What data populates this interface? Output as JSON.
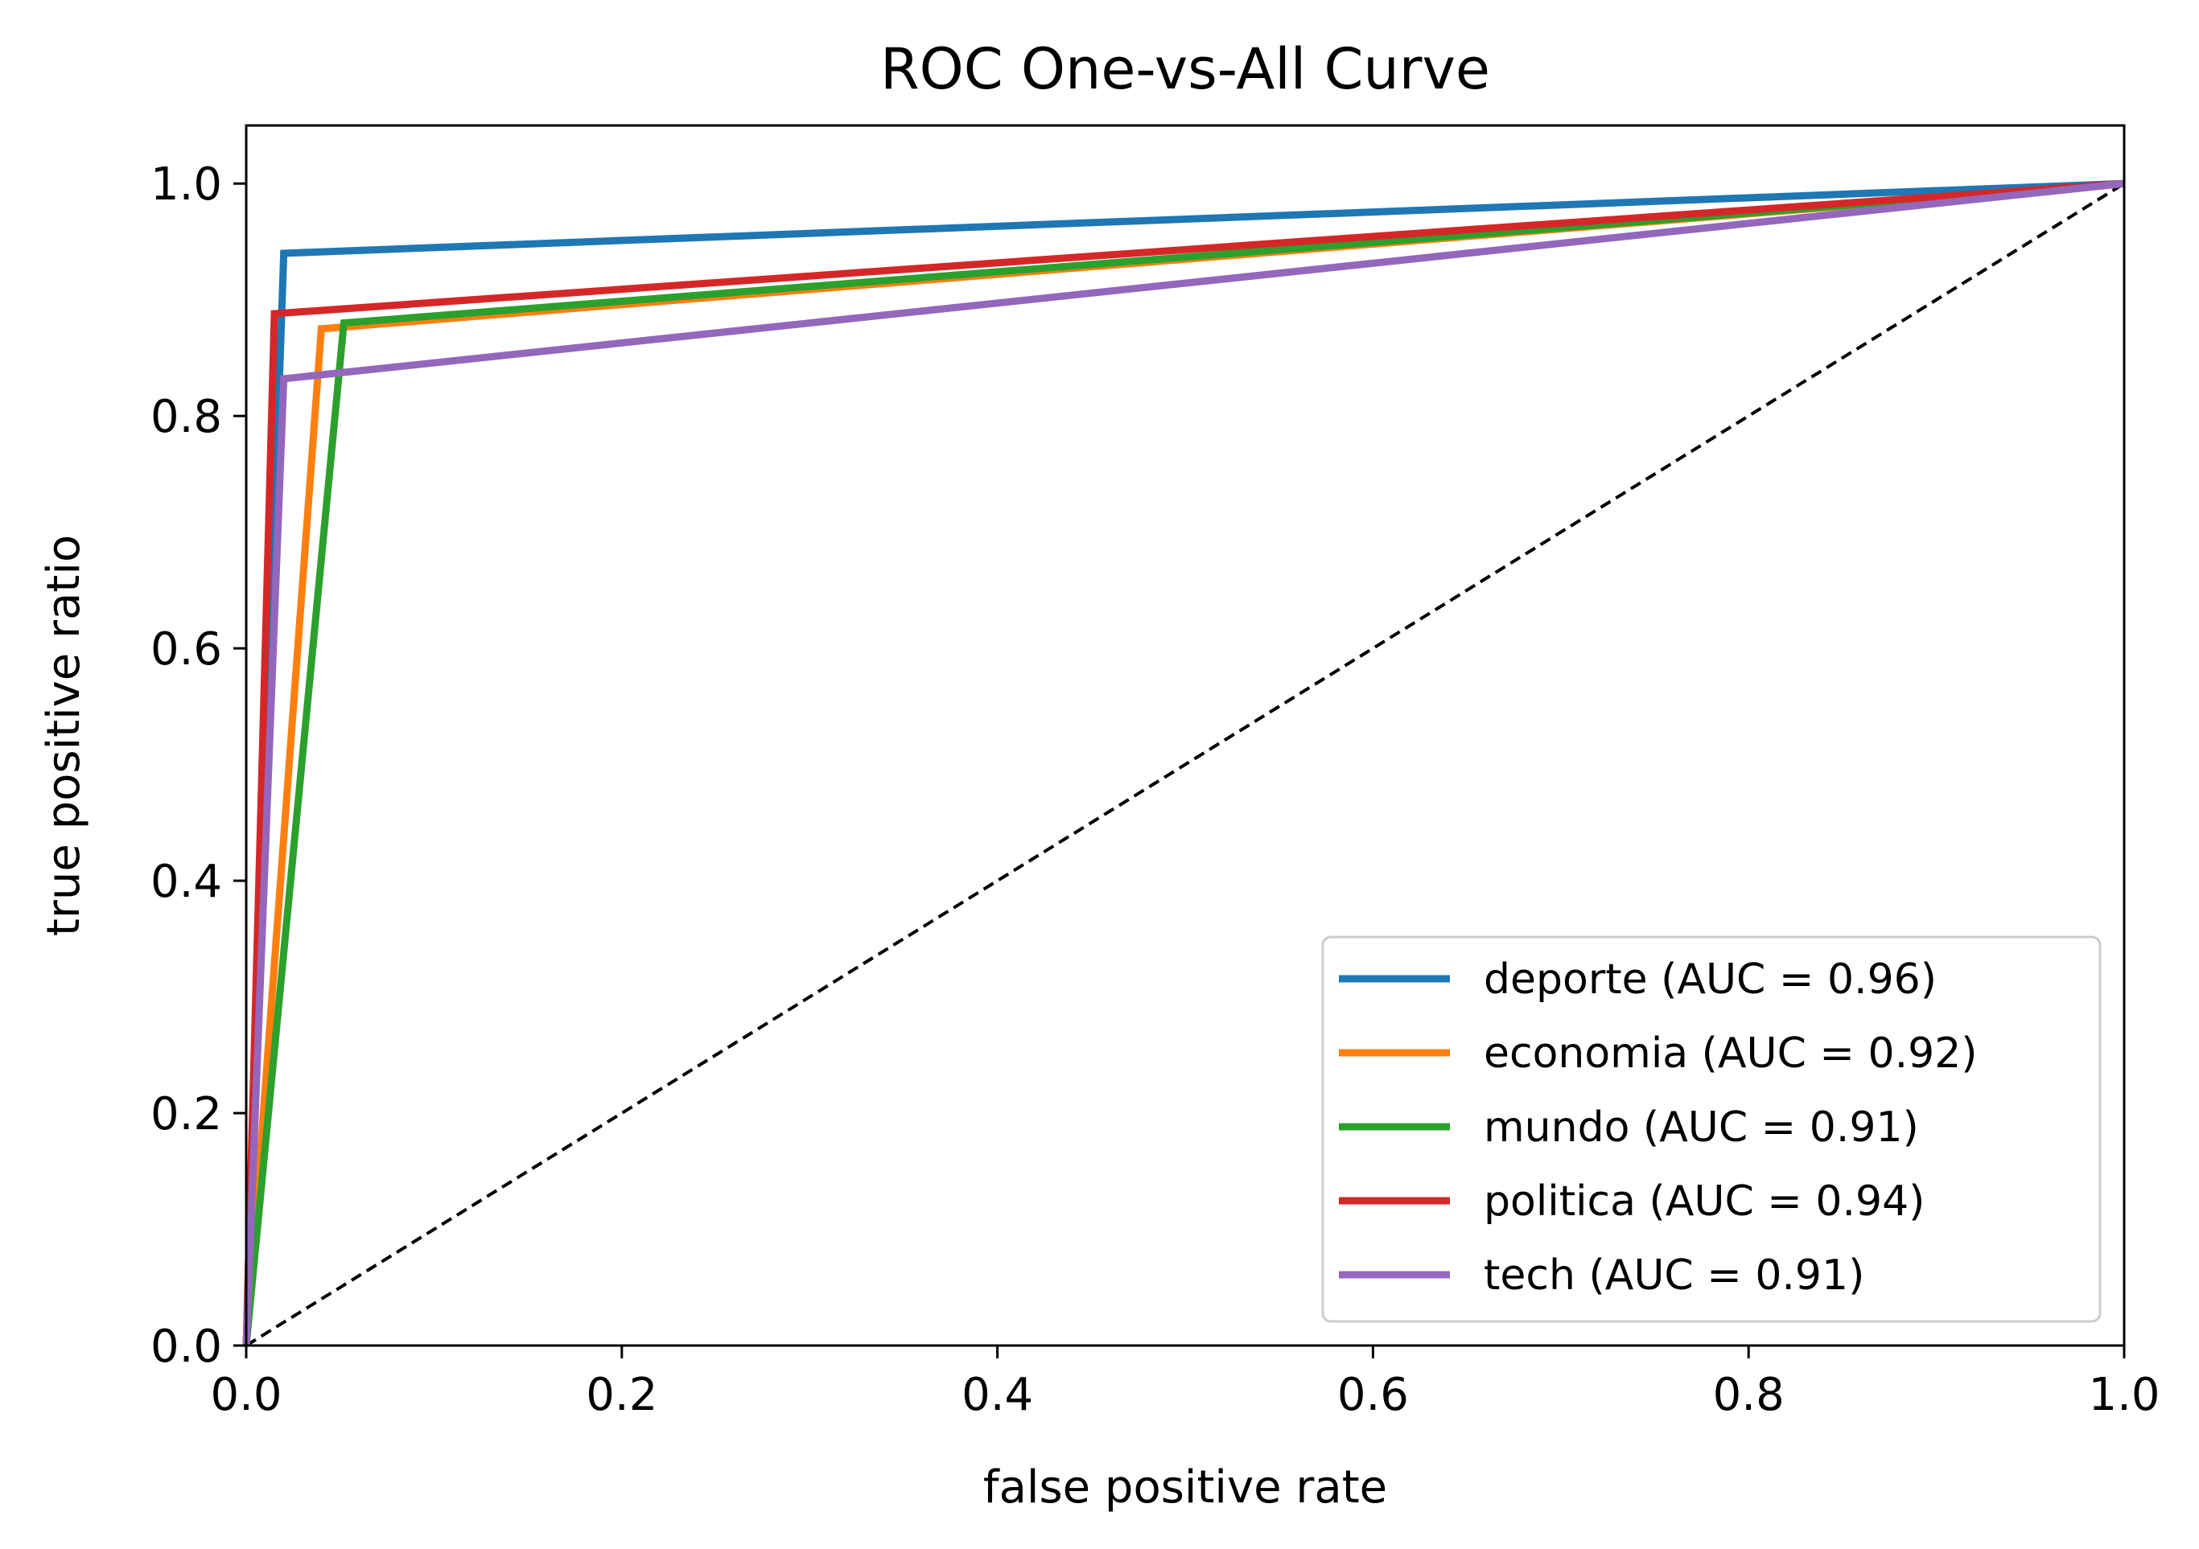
{
  "chart_data": {
    "type": "line",
    "title": "ROC One-vs-All Curve",
    "xlabel": "false positive rate",
    "ylabel": "true positive ratio",
    "xlim": [
      0.0,
      1.0
    ],
    "ylim": [
      0.0,
      1.05
    ],
    "xticks": [
      "0.0",
      "0.2",
      "0.4",
      "0.6",
      "0.8",
      "1.0"
    ],
    "yticks": [
      "0.0",
      "0.2",
      "0.4",
      "0.6",
      "0.8",
      "1.0"
    ],
    "grid": false,
    "legend_position": "bottom-right",
    "diagonal": {
      "x": [
        0,
        1
      ],
      "y": [
        0,
        1
      ],
      "color": "#000000",
      "style": "dashed"
    },
    "series": [
      {
        "name": "deporte (AUC = 0.96)",
        "color": "#1f77b4",
        "x": [
          0,
          0.02,
          1
        ],
        "y": [
          0,
          0.94,
          1
        ]
      },
      {
        "name": "economia (AUC = 0.92)",
        "color": "#ff7f0e",
        "x": [
          0,
          0.04,
          1
        ],
        "y": [
          0,
          0.875,
          1
        ]
      },
      {
        "name": "mundo (AUC = 0.91)",
        "color": "#2ca02c",
        "x": [
          0,
          0.052,
          1
        ],
        "y": [
          0,
          0.88,
          1
        ]
      },
      {
        "name": "politica (AUC = 0.94)",
        "color": "#d62728",
        "x": [
          0,
          0.015,
          1
        ],
        "y": [
          0,
          0.888,
          1
        ]
      },
      {
        "name": "tech (AUC = 0.91)",
        "color": "#9467bd",
        "x": [
          0,
          0.02,
          1
        ],
        "y": [
          0,
          0.832,
          1
        ]
      }
    ]
  }
}
